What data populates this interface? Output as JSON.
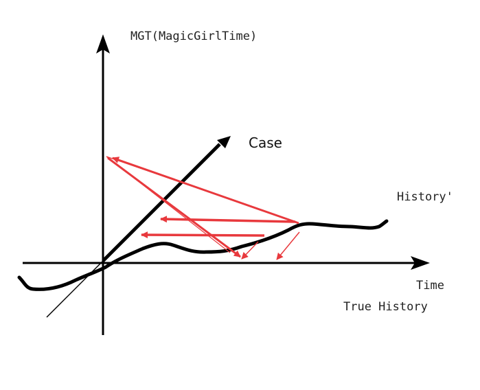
{
  "labels": {
    "y_axis": "MGT(MagicGirlTime)",
    "case_axis": "Case",
    "history_prime": "History'",
    "x_axis": "Time",
    "true_history": "True History"
  },
  "colors": {
    "ink": "#000000",
    "arrow": "#e8393d"
  }
}
